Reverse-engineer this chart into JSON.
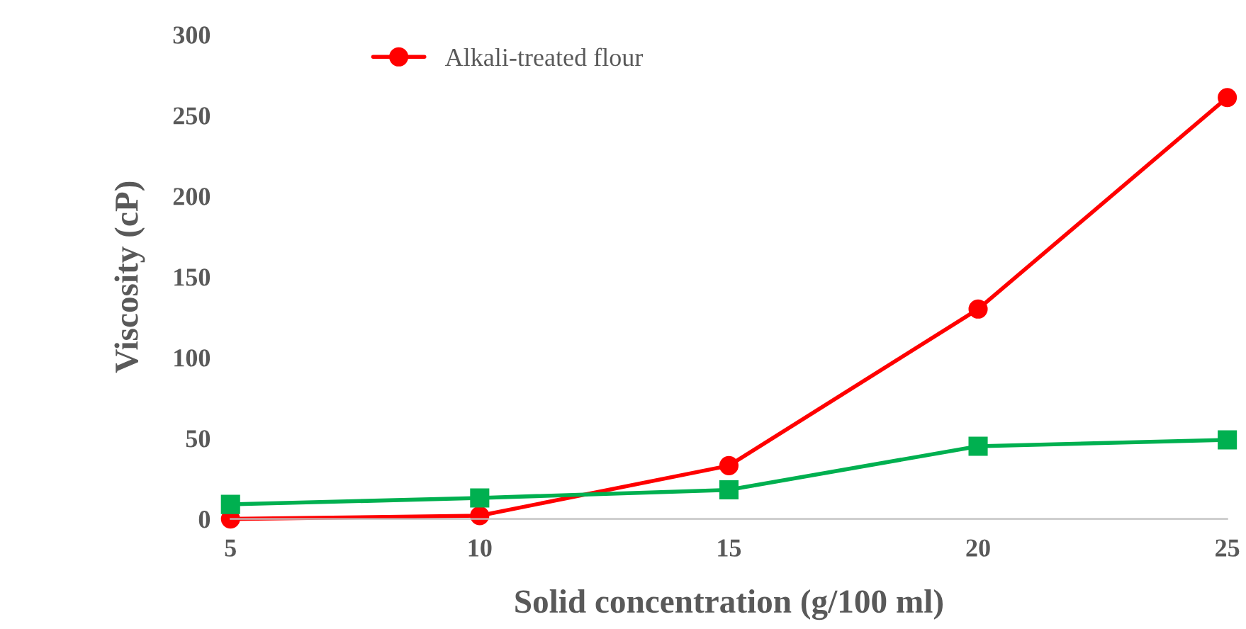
{
  "chart_data": {
    "type": "line",
    "xlabel": "Solid concentration (g/100 ml)",
    "ylabel": "Viscosity (cP)",
    "x": [
      5,
      10,
      15,
      20,
      25
    ],
    "series": [
      {
        "name": "Alkali-treated flour",
        "color": "#ff0000",
        "values": [
          0,
          2,
          33,
          130,
          261
        ],
        "marker": "circle"
      },
      {
        "color": "#00b050",
        "values": [
          9,
          13,
          18,
          45,
          49
        ],
        "marker": "square"
      }
    ],
    "xlim": [
      5,
      25
    ],
    "xticks": [
      5,
      10,
      15,
      20,
      25
    ],
    "ylim": [
      0,
      300
    ],
    "yticks": [
      0,
      50,
      100,
      150,
      200,
      250,
      300
    ],
    "grid": false,
    "legend": "top left",
    "line_style": "solid"
  }
}
